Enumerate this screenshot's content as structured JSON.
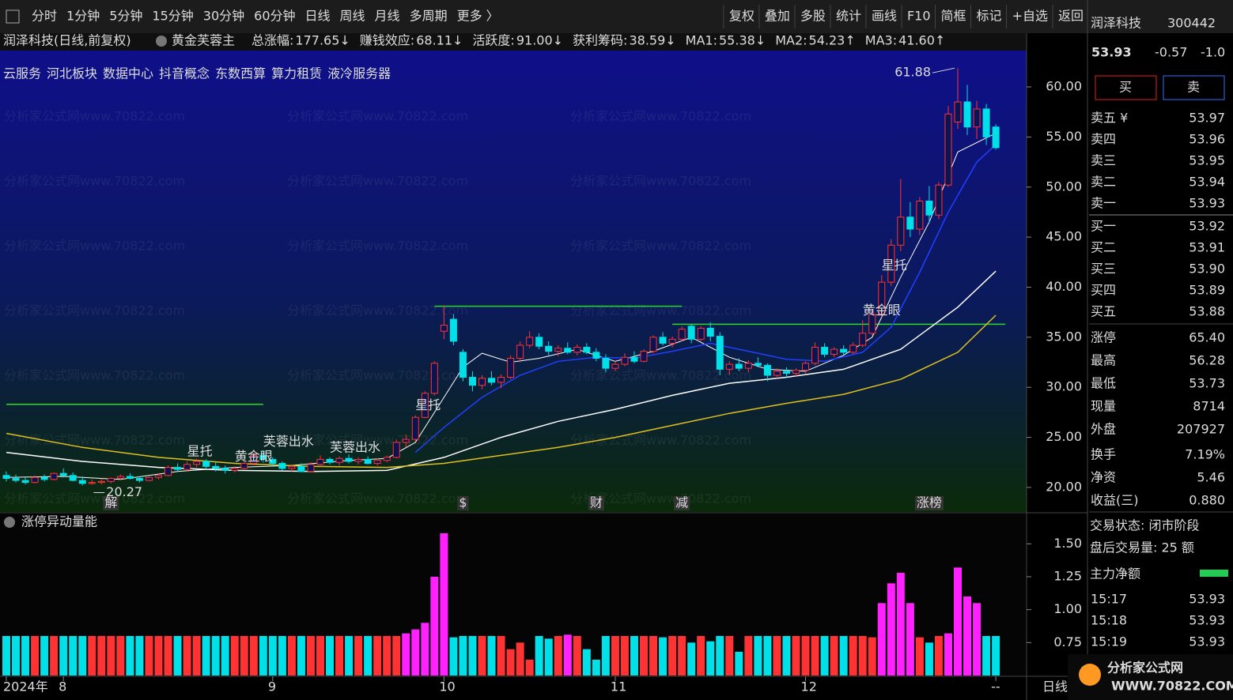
{
  "toolbar": {
    "left": [
      "分时",
      "1分钟",
      "5分钟",
      "15分钟",
      "30分钟",
      "60分钟",
      "日线",
      "周线",
      "月线",
      "多周期",
      "更多 〉"
    ],
    "active": "日线",
    "right": [
      "复权",
      "叠加",
      "多股",
      "统计",
      "画线",
      "F10",
      "简框",
      "标记",
      "+自选",
      "返回"
    ]
  },
  "chart_data": {
    "type": "candlestick",
    "title": "润泽科技(日线,前复权)",
    "indicator_name": "黄金芙蓉主",
    "stats": [
      {
        "label": "总涨幅:",
        "value": 177.65,
        "arrow": "↓",
        "color": "#ffe000",
        "arrow_color": "#00e5ff"
      },
      {
        "label": "赚钱效应:",
        "value": 68.11,
        "arrow": "↓",
        "color": "#ffe000",
        "arrow_color": "#00e5ff"
      },
      {
        "label": "活跃度:",
        "value": 91.0,
        "value_label": "91.00",
        "arrow": "↓",
        "color": "#ff33ff",
        "arrow_color": "#00e5ff"
      },
      {
        "label": "获利筹码:",
        "value": 38.59,
        "arrow": "↓",
        "color": "#33dd33",
        "arrow_color": "#00e5ff"
      },
      {
        "label": "MA1:",
        "value": 55.38,
        "arrow": "↓",
        "color": "#ffffff",
        "arrow_color": "#00e5ff"
      },
      {
        "label": "MA2:",
        "value": 54.23,
        "arrow": "↑",
        "color": "#2040ff",
        "arrow_color": "#ff3030"
      },
      {
        "label": "MA3:",
        "value": 41.6,
        "value_label": "41.60",
        "arrow": "↑",
        "color": "#ffffff",
        "arrow_color": "#ff3030"
      }
    ],
    "concepts": [
      "云服务",
      "河北板块",
      "数据中心",
      "抖音概念",
      "东数西算",
      "算力租赁",
      "液冷服务器"
    ],
    "watermark": "分析家公式网www.70822.com",
    "up_color": "#ff3333",
    "down_color": "#00e0e8",
    "candles": [
      [
        21.2,
        21.6,
        20.6,
        20.9
      ],
      [
        20.9,
        21.3,
        20.5,
        20.7
      ],
      [
        20.7,
        21.0,
        20.3,
        20.5
      ],
      [
        20.5,
        21.2,
        20.4,
        21.0
      ],
      [
        21.0,
        21.3,
        20.6,
        20.8
      ],
      [
        20.8,
        21.5,
        20.7,
        21.4
      ],
      [
        21.4,
        21.9,
        21.0,
        21.2
      ],
      [
        21.2,
        21.5,
        20.6,
        20.7
      ],
      [
        20.7,
        21.1,
        20.2,
        20.4
      ],
      [
        20.4,
        20.8,
        20.27,
        20.5
      ],
      [
        20.5,
        20.9,
        20.3,
        20.6
      ],
      [
        20.6,
        21.0,
        20.4,
        20.9
      ],
      [
        20.9,
        21.3,
        20.7,
        21.1
      ],
      [
        21.1,
        21.4,
        20.8,
        20.9
      ],
      [
        20.9,
        21.1,
        20.5,
        20.7
      ],
      [
        20.7,
        21.1,
        20.6,
        21.0
      ],
      [
        21.0,
        21.4,
        20.8,
        21.2
      ],
      [
        21.2,
        22.2,
        21.1,
        22.0
      ],
      [
        22.0,
        22.4,
        21.6,
        21.8
      ],
      [
        21.8,
        22.6,
        21.7,
        22.3
      ],
      [
        22.3,
        22.9,
        22.0,
        22.6
      ],
      [
        22.6,
        22.8,
        21.9,
        22.1
      ],
      [
        22.1,
        22.5,
        21.6,
        21.9
      ],
      [
        21.9,
        22.2,
        21.4,
        21.7
      ],
      [
        21.7,
        22.1,
        21.5,
        21.9
      ],
      [
        21.9,
        22.6,
        21.8,
        22.4
      ],
      [
        22.4,
        23.5,
        22.2,
        23.2
      ],
      [
        23.2,
        23.6,
        22.5,
        22.8
      ],
      [
        22.8,
        23.0,
        22.2,
        22.4
      ],
      [
        22.4,
        22.6,
        21.7,
        21.9
      ],
      [
        21.9,
        22.3,
        21.6,
        22.1
      ],
      [
        22.1,
        22.4,
        21.5,
        21.6
      ],
      [
        21.6,
        22.5,
        21.5,
        22.3
      ],
      [
        22.3,
        23.2,
        22.1,
        22.8
      ],
      [
        22.8,
        23.0,
        22.3,
        22.5
      ],
      [
        22.5,
        23.1,
        22.2,
        22.9
      ],
      [
        22.9,
        23.3,
        22.4,
        22.6
      ],
      [
        22.6,
        23.0,
        22.3,
        22.8
      ],
      [
        22.8,
        23.1,
        22.3,
        22.4
      ],
      [
        22.4,
        22.9,
        22.2,
        22.7
      ],
      [
        22.7,
        23.2,
        22.5,
        23.0
      ],
      [
        23.0,
        24.8,
        22.9,
        24.5
      ],
      [
        24.5,
        25.3,
        24.0,
        24.8
      ],
      [
        24.8,
        27.2,
        24.6,
        27.0
      ],
      [
        27.0,
        29.6,
        26.9,
        29.4
      ],
      [
        29.4,
        32.6,
        29.2,
        32.4
      ],
      [
        35.6,
        38.2,
        34.8,
        36.2
      ],
      [
        36.8,
        37.3,
        34.2,
        34.6
      ],
      [
        33.5,
        33.8,
        30.6,
        31.0
      ],
      [
        31.0,
        31.6,
        29.6,
        30.2
      ],
      [
        30.2,
        31.2,
        29.8,
        30.9
      ],
      [
        30.9,
        31.6,
        30.2,
        30.5
      ],
      [
        30.5,
        31.3,
        29.9,
        31.0
      ],
      [
        31.0,
        33.2,
        30.8,
        32.9
      ],
      [
        32.9,
        34.6,
        32.5,
        34.2
      ],
      [
        34.2,
        35.6,
        33.9,
        35.0
      ],
      [
        35.0,
        35.4,
        33.8,
        34.1
      ],
      [
        34.1,
        34.6,
        33.2,
        33.6
      ],
      [
        33.6,
        34.2,
        33.1,
        33.9
      ],
      [
        33.9,
        34.5,
        33.3,
        33.5
      ],
      [
        33.5,
        34.3,
        33.2,
        34.0
      ],
      [
        34.0,
        34.4,
        33.3,
        33.5
      ],
      [
        33.5,
        33.9,
        32.6,
        32.9
      ],
      [
        32.9,
        33.3,
        31.5,
        31.9
      ],
      [
        31.9,
        32.6,
        31.6,
        32.3
      ],
      [
        32.3,
        33.4,
        32.1,
        33.0
      ],
      [
        33.0,
        33.6,
        32.4,
        32.6
      ],
      [
        32.6,
        33.8,
        32.5,
        33.6
      ],
      [
        33.6,
        35.2,
        33.4,
        35.0
      ],
      [
        35.0,
        35.5,
        34.2,
        34.4
      ],
      [
        34.4,
        35.1,
        34.0,
        34.8
      ],
      [
        34.8,
        36.1,
        34.6,
        35.8
      ],
      [
        36.1,
        36.3,
        34.4,
        34.8
      ],
      [
        34.8,
        36.1,
        34.6,
        35.9
      ],
      [
        35.9,
        36.5,
        34.6,
        35.1
      ],
      [
        35.1,
        35.5,
        31.2,
        31.8
      ],
      [
        31.8,
        32.6,
        31.2,
        32.3
      ],
      [
        32.3,
        32.9,
        31.6,
        31.9
      ],
      [
        31.9,
        32.7,
        31.5,
        32.4
      ],
      [
        32.4,
        33.0,
        32.0,
        32.2
      ],
      [
        32.2,
        32.4,
        30.6,
        31.2
      ],
      [
        31.2,
        31.9,
        30.9,
        31.6
      ],
      [
        31.6,
        32.0,
        31.0,
        31.4
      ],
      [
        31.4,
        31.9,
        31.1,
        31.7
      ],
      [
        31.7,
        32.6,
        31.4,
        32.4
      ],
      [
        32.4,
        34.5,
        32.2,
        34.0
      ],
      [
        34.0,
        34.4,
        33.0,
        33.3
      ],
      [
        33.3,
        34.0,
        33.0,
        33.8
      ],
      [
        33.8,
        34.2,
        33.2,
        33.5
      ],
      [
        33.5,
        34.5,
        33.3,
        34.2
      ],
      [
        34.2,
        36.7,
        34.0,
        35.4
      ],
      [
        35.4,
        37.6,
        35.2,
        37.3
      ],
      [
        37.3,
        41.2,
        37.0,
        40.5
      ],
      [
        40.5,
        44.8,
        40.1,
        44.2
      ],
      [
        44.2,
        50.8,
        43.6,
        47.0
      ],
      [
        47.0,
        48.5,
        45.0,
        45.8
      ],
      [
        45.8,
        49.0,
        45.2,
        48.6
      ],
      [
        48.6,
        50.1,
        46.4,
        47.2
      ],
      [
        47.2,
        50.5,
        46.8,
        50.2
      ],
      [
        50.2,
        58.1,
        50.0,
        57.3
      ],
      [
        56.5,
        61.88,
        55.8,
        58.5
      ],
      [
        58.5,
        60.2,
        55.2,
        56.0
      ],
      [
        56.0,
        58.6,
        54.8,
        57.8
      ],
      [
        57.8,
        58.3,
        54.2,
        55.0
      ],
      [
        56.0,
        56.28,
        53.73,
        53.93
      ]
    ],
    "ma_lines": [
      {
        "color": "#ffffff",
        "width": 1,
        "x": [
          0,
          6,
          12,
          18,
          24,
          30,
          36,
          40,
          43,
          46,
          48,
          50,
          53,
          56,
          60,
          64,
          68,
          72,
          76,
          80,
          84,
          88,
          91,
          94,
          97,
          100,
          104
        ],
        "values": [
          21.0,
          21.1,
          20.8,
          21.6,
          22.0,
          22.2,
          22.7,
          22.9,
          24.5,
          29.0,
          32.0,
          33.4,
          32.5,
          32.9,
          33.8,
          32.6,
          33.6,
          35.0,
          33.0,
          31.8,
          31.6,
          33.2,
          35.0,
          41.0,
          46.5,
          53.5,
          55.38
        ]
      },
      {
        "color": "#2040ff",
        "width": 1.5,
        "x": [
          43,
          46,
          50,
          54,
          58,
          62,
          66,
          70,
          74,
          78,
          82,
          86,
          90,
          93,
          96,
          99,
          102,
          104
        ],
        "values": [
          23.5,
          26.0,
          29.0,
          31.2,
          32.6,
          33.0,
          32.9,
          33.6,
          34.4,
          33.6,
          32.8,
          32.6,
          33.5,
          36.0,
          41.5,
          47.5,
          52.5,
          54.23
        ]
      },
      {
        "color": "#ffffff",
        "width": 1.5,
        "x": [
          0,
          8,
          16,
          24,
          32,
          40,
          46,
          52,
          58,
          64,
          70,
          76,
          82,
          88,
          94,
          100,
          104
        ],
        "values": [
          23.5,
          22.6,
          22.0,
          21.7,
          21.6,
          21.7,
          23.0,
          25.0,
          26.6,
          27.8,
          29.2,
          30.4,
          31.0,
          31.8,
          33.8,
          38.0,
          41.6
        ]
      },
      {
        "color": "#e0c020",
        "width": 1.5,
        "x": [
          0,
          8,
          16,
          24,
          32,
          40,
          46,
          52,
          58,
          64,
          70,
          76,
          82,
          88,
          94,
          100,
          104
        ],
        "values": [
          25.4,
          24.0,
          23.0,
          22.4,
          22.1,
          22.0,
          22.4,
          23.2,
          24.0,
          25.0,
          26.2,
          27.4,
          28.4,
          29.3,
          30.8,
          33.5,
          37.2
        ]
      }
    ],
    "levels": [
      {
        "value": 28.3,
        "from": 0,
        "to": 27,
        "color": "#22dd22"
      },
      {
        "value": 38.1,
        "from": 45,
        "to": 71,
        "color": "#22dd22"
      },
      {
        "value": 36.3,
        "from": 70,
        "to": 105,
        "color": "#22dd22"
      }
    ],
    "max_marker": 61.88,
    "min_marker": 20.27,
    "signals": [
      {
        "text": "星托",
        "index": 19,
        "color": "#ffffff"
      },
      {
        "text": "黄金眼",
        "index": 24,
        "color": "#ffe000"
      },
      {
        "text": "芙蓉出水",
        "index": 27,
        "color": "#ff33ff"
      },
      {
        "text": "芙蓉出水",
        "index": 34,
        "color": "#ff33ff"
      },
      {
        "text": "星托",
        "index": 43,
        "color": "#ffffff"
      },
      {
        "text": "黄金眼",
        "index": 90,
        "color": "#ffe000"
      },
      {
        "text": "星托",
        "index": 92,
        "color": "#ffffff"
      }
    ],
    "events": [
      {
        "text": "解",
        "index": 11,
        "color": "#00e0e8"
      },
      {
        "text": "$",
        "index": 48,
        "color": "#ff3333"
      },
      {
        "text": "财",
        "index": 62,
        "color": "#66aaff"
      },
      {
        "text": "减",
        "index": 71,
        "color": "#33dd33"
      },
      {
        "text": "涨榜",
        "index": 97,
        "color": "#ff6666"
      }
    ],
    "ylim": [
      17.55,
      63.0
    ],
    "yticks": [
      {
        "value": 20,
        "label": "20.00"
      },
      {
        "value": 25,
        "label": "25.00"
      },
      {
        "value": 30,
        "label": "30.00"
      },
      {
        "value": 35,
        "label": "35.00"
      },
      {
        "value": 40,
        "label": "40.00"
      },
      {
        "value": 45,
        "label": "45.00"
      },
      {
        "value": 50,
        "label": "50.00"
      },
      {
        "value": 55,
        "label": "55.00"
      },
      {
        "value": 60,
        "label": "60.00"
      }
    ],
    "x_labels": [
      {
        "index": 0,
        "label": "2024年"
      },
      {
        "index": 6,
        "label": "8"
      },
      {
        "index": 28,
        "label": "9"
      },
      {
        "index": 46,
        "label": "10"
      },
      {
        "index": 64,
        "label": "11"
      },
      {
        "index": 84,
        "label": "12"
      },
      {
        "index": 104,
        "label": "--"
      }
    ],
    "period_label": "日线",
    "sub_chart": {
      "type": "bar",
      "title": "涨停异动量能",
      "ylim": [
        0.5,
        1.7
      ],
      "yticks": [
        0.75,
        {
          "value": 1,
          "label": "1.00"
        },
        1.25,
        {
          "value": 1.5,
          "label": "1.50"
        }
      ],
      "highlight_color": "#ff22ff",
      "values": [
        0.8,
        0.8,
        0.8,
        0.8,
        0.8,
        0.8,
        0.8,
        0.8,
        0.8,
        0.8,
        0.8,
        0.8,
        0.8,
        0.8,
        0.8,
        0.8,
        0.8,
        0.8,
        0.8,
        0.8,
        0.8,
        0.8,
        0.8,
        0.8,
        0.8,
        0.8,
        0.8,
        0.8,
        0.8,
        0.8,
        0.8,
        0.8,
        0.8,
        0.8,
        0.8,
        0.8,
        0.8,
        0.8,
        0.8,
        0.8,
        0.8,
        0.8,
        0.82,
        0.85,
        0.9,
        1.25,
        1.58,
        0.79,
        0.8,
        0.8,
        0.8,
        0.8,
        0.8,
        0.7,
        0.75,
        0.62,
        0.8,
        0.78,
        0.8,
        0.81,
        0.8,
        0.7,
        0.62,
        0.8,
        0.8,
        0.8,
        0.8,
        0.8,
        0.8,
        0.79,
        0.8,
        0.8,
        0.75,
        0.8,
        0.76,
        0.8,
        0.8,
        0.68,
        0.8,
        0.8,
        0.8,
        0.8,
        0.8,
        0.8,
        0.8,
        0.8,
        0.8,
        0.8,
        0.8,
        0.8,
        0.8,
        0.79,
        1.05,
        1.2,
        1.28,
        1.05,
        0.79,
        0.75,
        0.8,
        0.82,
        1.32,
        1.1,
        1.05,
        0.8,
        0.8
      ]
    }
  },
  "quote": {
    "name": "润泽科技",
    "code": "300442",
    "price": "53.93",
    "change": "-0.57",
    "change_pct": "-1.0",
    "buy": "买",
    "sell": "卖",
    "asks": [
      {
        "label": "卖五 ¥",
        "price": "53.97"
      },
      {
        "label": "卖四",
        "price": "53.96"
      },
      {
        "label": "卖三",
        "price": "53.95"
      },
      {
        "label": "卖二",
        "price": "53.94"
      },
      {
        "label": "卖一",
        "price": "53.93"
      }
    ],
    "bids": [
      {
        "label": "买一",
        "price": "53.92"
      },
      {
        "label": "买二",
        "price": "53.91"
      },
      {
        "label": "买三",
        "price": "53.90"
      },
      {
        "label": "买四",
        "price": "53.89"
      },
      {
        "label": "买五",
        "price": "53.88"
      }
    ],
    "stats": [
      {
        "label": "涨停",
        "value": "65.40",
        "color": "#ff3333"
      },
      {
        "label": "最高",
        "value": "56.28",
        "color": "#ff3333"
      },
      {
        "label": "最低",
        "value": "53.73",
        "color": "#33dd33"
      },
      {
        "label": "现量",
        "value": "8714",
        "color": "#ff33ff"
      },
      {
        "label": "外盘",
        "value": "207927",
        "color": "#ff3333"
      },
      {
        "label": "换手",
        "value": "7.19%",
        "color": "#dddddd"
      },
      {
        "label": "净资",
        "value": "5.46",
        "color": "#dddddd"
      },
      {
        "label": "收益(三)",
        "value": "0.880",
        "color": "#dddddd"
      }
    ],
    "status": [
      "交易状态: 闭市阶段",
      "盘后交易量: 25  额"
    ],
    "net_label": "主力净额",
    "trades": [
      {
        "time": "15:17",
        "price": "53.93"
      },
      {
        "time": "15:18",
        "price": "53.93"
      },
      {
        "time": "15:19",
        "price": "53.93"
      }
    ]
  },
  "logo": {
    "title": "分析家公式网",
    "url": "WWW.70822.COM"
  }
}
